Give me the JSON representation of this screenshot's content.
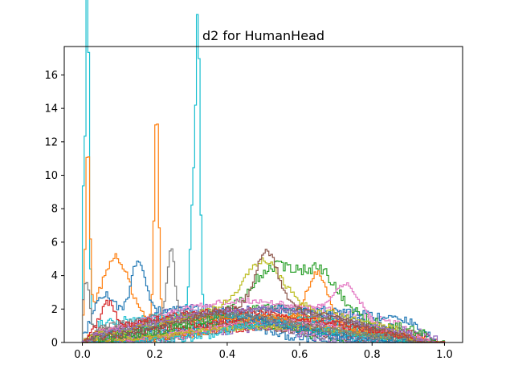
{
  "chart_data": {
    "type": "histogram",
    "title": "d2 for HumanHead",
    "xlabel": "",
    "ylabel": "",
    "xlim": [
      -0.05,
      1.05
    ],
    "ylim": [
      0,
      17.7
    ],
    "xticks": [
      0.0,
      0.2,
      0.4,
      0.6,
      0.8,
      1.0
    ],
    "xtick_labels": [
      "0.0",
      "0.2",
      "0.4",
      "0.6",
      "0.8",
      "1.0"
    ],
    "yticks": [
      0,
      2,
      4,
      6,
      8,
      10,
      12,
      14,
      16
    ],
    "ytick_labels": [
      "0",
      "2",
      "4",
      "6",
      "8",
      "10",
      "12",
      "14",
      "16"
    ],
    "histtype": "step",
    "bin_width": 0.005,
    "colors": [
      "#1f77b4",
      "#ff7f0e",
      "#2ca02c",
      "#d62728",
      "#9467bd",
      "#8c564b",
      "#e377c2",
      "#7f7f7f",
      "#bcbd22",
      "#17becf"
    ],
    "series": [
      {
        "name": "cyan-spiky",
        "color": "#17becf",
        "peaks": [
          [
            0.005,
            0.008,
            9.5
          ],
          [
            0.015,
            0.004,
            16.9
          ],
          [
            0.32,
            0.005,
            12.9
          ],
          [
            0.31,
            0.01,
            8.5
          ]
        ],
        "base": [
          0.3,
          0.3,
          1.6
        ],
        "spread": 0.28
      },
      {
        "name": "orange-spiky",
        "color": "#ff7f0e",
        "peaks": [
          [
            0.015,
            0.006,
            11.0
          ],
          [
            0.205,
            0.006,
            12.6
          ],
          [
            0.09,
            0.04,
            4.2
          ],
          [
            0.65,
            0.03,
            3.2
          ]
        ],
        "base": [
          0.4,
          0.3,
          1.5
        ],
        "spread": 0.3
      },
      {
        "name": "green",
        "color": "#2ca02c",
        "peaks": [
          [
            0.53,
            0.06,
            2.5
          ],
          [
            0.66,
            0.05,
            2.3
          ]
        ],
        "base": [
          0.55,
          0.25,
          2.0
        ],
        "spread": 0.45
      },
      {
        "name": "blue",
        "color": "#1f77b4",
        "peaks": [
          [
            0.155,
            0.02,
            3.3
          ],
          [
            0.06,
            0.03,
            1.8
          ]
        ],
        "base": [
          0.3,
          0.22,
          2.0
        ],
        "spread": 0.3
      },
      {
        "name": "pink",
        "color": "#e377c2",
        "peaks": [
          [
            0.73,
            0.04,
            2.1
          ]
        ],
        "base": [
          0.45,
          0.25,
          2.5
        ],
        "spread": 0.2
      },
      {
        "name": "gray",
        "color": "#7f7f7f",
        "peaks": [
          [
            0.245,
            0.01,
            4.0
          ],
          [
            0.01,
            0.01,
            3.5
          ]
        ],
        "base": [
          0.35,
          0.25,
          1.8
        ],
        "spread": 0.25
      },
      {
        "name": "olive",
        "color": "#bcbd22",
        "peaks": [
          [
            0.5,
            0.05,
            2.6
          ]
        ],
        "base": [
          0.5,
          0.25,
          2.3
        ],
        "spread": 0.25
      },
      {
        "name": "red",
        "color": "#d62728",
        "peaks": [
          [
            0.07,
            0.02,
            1.6
          ]
        ],
        "base": [
          0.42,
          0.27,
          1.9
        ],
        "spread": 0.25
      },
      {
        "name": "purple",
        "color": "#9467bd",
        "peaks": [],
        "base": [
          0.48,
          0.27,
          2.0
        ],
        "spread": 0.2
      },
      {
        "name": "brown",
        "color": "#8c564b",
        "peaks": [
          [
            0.51,
            0.03,
            3.3
          ]
        ],
        "base": [
          0.5,
          0.22,
          2.2
        ],
        "spread": 0.25
      }
    ],
    "background_series_count": 30
  }
}
